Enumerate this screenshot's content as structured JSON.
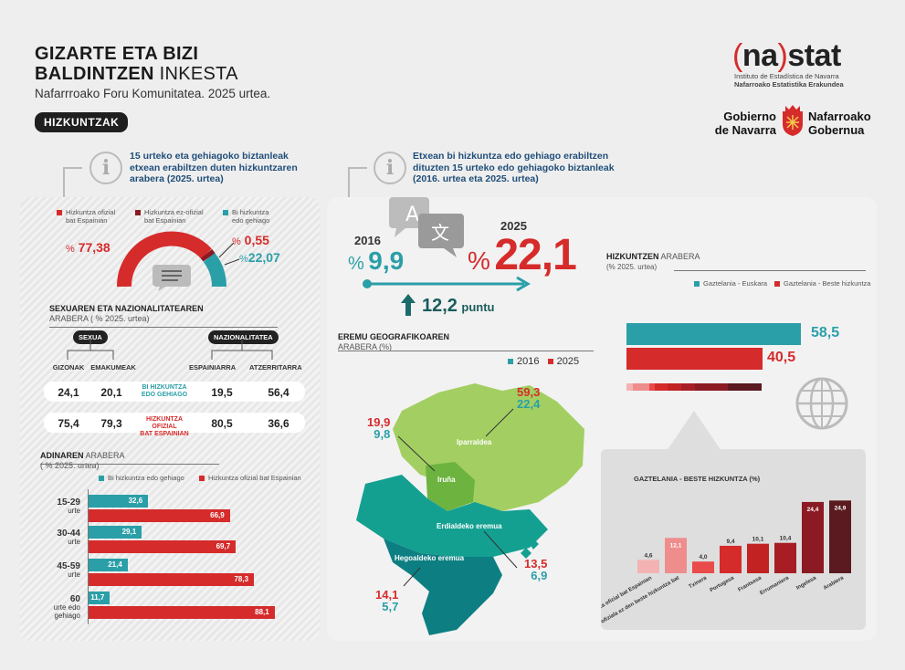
{
  "header": {
    "title_line1": "GIZARTE ETA BIZI",
    "title_line2_bold": "BALDINTZEN",
    "title_line2_light": " INKESTA",
    "subtitle": "Nafarrroako Foru Komunitatea. 2025 urtea.",
    "badge": "HIZKUNTZAK"
  },
  "logos": {
    "nastat_open": "(",
    "nastat_na": "na",
    "nastat_close": ")",
    "nastat_stat": "stat",
    "nastat_sub1": "Instituto de Estadística de Navarra",
    "nastat_sub2": "Nafarroako Estatistika Erakundea",
    "gob_left1": "Gobierno",
    "gob_left2": "de Navarra",
    "gob_right1": "Nafarroako",
    "gob_right2": "Gobernua"
  },
  "colors": {
    "teal": "#2a9fa8",
    "red": "#d62b2b",
    "darkred": "#8b1a22",
    "green": "#8dc63f",
    "darkteal": "#0b8f85"
  },
  "left_info": {
    "icon": "info-icon",
    "text1": "15 urteko eta gehiagoko biztanleak",
    "text2": "etxean erabiltzen duten hizkuntzaren",
    "text3": "arabera (2025. urtea)"
  },
  "right_info": {
    "icon": "info-icon",
    "text1": "Etxean bi hizkuntza edo gehiago erabiltzen",
    "text2": "dituzten 15 urteko edo gehiagoko biztanleak",
    "text3": "(2016. urtea eta 2025. urtea)"
  },
  "donut_legend": {
    "l1a": "Hizkuntza ofizial",
    "l1b": "bat Espainian",
    "l2a": "Hizkuntza ez-ofizial",
    "l2b": "bat Espainian",
    "l3a": "Bi hizkuntza",
    "l3b": "edo gehiago"
  },
  "donut": {
    "pct1": "%",
    "val1": "77,38",
    "pct2": "%",
    "val2": "0,55",
    "pct3": "%",
    "val3": "22,07",
    "icon": "chat-bubble-icon"
  },
  "sex_nat": {
    "title_bold": "SEXUAREN ETA NAZIONALITATEAREN",
    "title_light": "ARABERA ( % 2025. urtea)",
    "pill_sex": "SEXUA",
    "pill_nat": "NAZIONALITATEA",
    "col1": "GIZONAK",
    "col2": "EMAKUMEAK",
    "col3": "ESPAINIARRA",
    "col4": "ATZERRITARRA",
    "row1_label1": "BI HIZKUNTZA",
    "row1_label2": "EDO GEHIAGO",
    "row2_label1": "HIZKUNTZA OFIZIAL",
    "row2_label2": "BAT ESPAINIAN",
    "r1": [
      "24,1",
      "20,1",
      "19,5",
      "56,4"
    ],
    "r2": [
      "75,4",
      "79,3",
      "80,5",
      "36,6"
    ]
  },
  "age": {
    "title_bold": "ADINAREN",
    "title_light": " ARABERA",
    "subtitle": "( % 2025. urtea)",
    "leg1": "Bi hizkuntza edo gehiago",
    "leg2": "Hizkuntza ofizial bat Espainian",
    "groups": [
      {
        "l1": "15-29",
        "l2": "urte",
        "teal": 32.6,
        "teal_lbl": "32,6",
        "red": 66.9,
        "red_lbl": "66,9"
      },
      {
        "l1": "30-44",
        "l2": "urte",
        "teal": 29.1,
        "teal_lbl": "29,1",
        "red": 69.7,
        "red_lbl": "69,7"
      },
      {
        "l1": "45-59",
        "l2": "urte",
        "teal": 21.4,
        "teal_lbl": "21,4",
        "red": 78.3,
        "red_lbl": "78,3"
      },
      {
        "l1": "60",
        "l2": "urte edo gehiago",
        "teal": 11.7,
        "teal_lbl": "11,7",
        "red": 88.1,
        "red_lbl": "88,1"
      }
    ]
  },
  "trend": {
    "y2016": "2016",
    "pct2016": "%",
    "v2016": "9,9",
    "y2025": "2025",
    "pct2025": "%",
    "v2025": "22,1",
    "change": "12,2",
    "change_unit": "puntu",
    "icon": "translate-icon"
  },
  "geo": {
    "title_bold": "EREMU GEOGRAFIKOAREN",
    "title_light": "ARABERA (%)",
    "leg2016": "2016",
    "leg2025": "2025",
    "regions": [
      {
        "name": "Iparraldea",
        "v2025": "59,3",
        "v2016": "22,4"
      },
      {
        "name": "Iruña",
        "v2025": "19,9",
        "v2016": "9,8"
      },
      {
        "name": "Erdialdeko eremua",
        "v2025": "13,5",
        "v2016": "6,9"
      },
      {
        "name": "Hegoaldeko eremua",
        "v2025": "14,1",
        "v2016": "5,7"
      }
    ]
  },
  "lang": {
    "title_bold": "HIZKUNTZEN",
    "title_light": " ARABERA",
    "subtitle": "(% 2025. urtea)",
    "leg1": "Gaztelania - Euskara",
    "leg2": "Gaztelania - Beste hizkuntza",
    "v1": 58.5,
    "v1_lbl": "58,5",
    "v2": 40.5,
    "v2_lbl": "40,5",
    "icon": "globe-icon"
  },
  "chart_data": {
    "type": "bar",
    "title": "GAZTELANIA - BESTE HIZKUNTZA (%)",
    "categories": [
      "Beste hizkuntza ofizial bat Espainian",
      "Espainian ofiziala ez den beste hizkuntza bat",
      "Txinera",
      "Portugesa",
      "Frantsesa",
      "Errumaniera",
      "Ingelesa",
      "Arabiera"
    ],
    "values": [
      4.6,
      12.1,
      4.0,
      9.4,
      10.1,
      10.4,
      24.4,
      24.9
    ],
    "labels": [
      "4,6",
      "12,1",
      "4,0",
      "9,4",
      "10,1",
      "10,4",
      "24,4",
      "24,9"
    ],
    "colors": [
      "#f3b3b3",
      "#ef8d8d",
      "#e94a4a",
      "#d62b2b",
      "#c22222",
      "#a81d24",
      "#8b1a22",
      "#5a1a1f"
    ]
  }
}
